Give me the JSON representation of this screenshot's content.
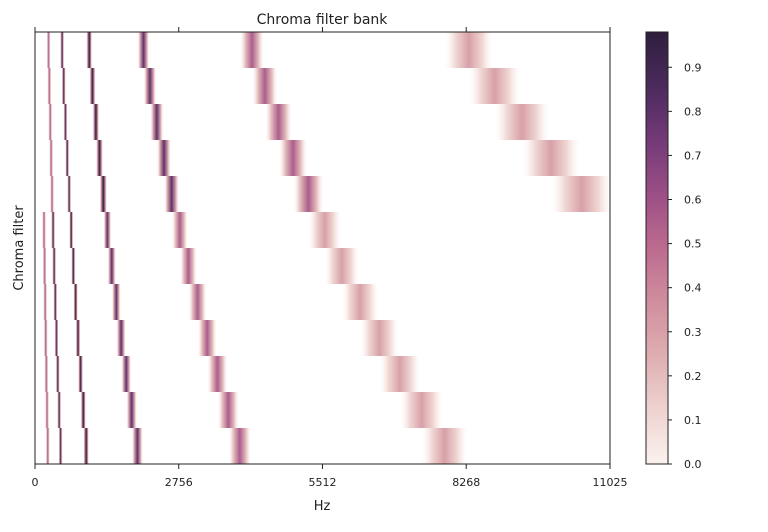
{
  "chart_data": {
    "type": "heatmap",
    "title": "Chroma filter bank",
    "xlabel": "Hz",
    "ylabel": "Chroma filter",
    "xlim": [
      0,
      11025
    ],
    "ylim": [
      0,
      12
    ],
    "x_ticks": [
      0,
      2756,
      5512,
      8268,
      11025
    ],
    "colorbar": {
      "min": 0.0,
      "max": 0.98,
      "ticks": [
        0.0,
        0.1,
        0.2,
        0.3,
        0.4,
        0.5,
        0.6,
        0.7,
        0.8,
        0.9
      ],
      "colors": [
        "#fbf2ef",
        "#eed3d0",
        "#dfaeb1",
        "#d08e9e",
        "#bc6b8f",
        "#9b4e85",
        "#733a77",
        "#4b2a5c",
        "#2e1e3d"
      ]
    },
    "rows": 12,
    "row_peaks_hz": [
      [
        260,
        520,
        1040,
        2080,
        4160,
        8320
      ],
      [
        275,
        551,
        1102,
        2204,
        4407,
        8815
      ],
      [
        292,
        584,
        1167,
        2335,
        4669,
        9339
      ],
      [
        309,
        618,
        1237,
        2473,
        4947,
        9894
      ],
      [
        327,
        655,
        1310,
        2620,
        5241,
        10482
      ],
      [
        173,
        347,
        694,
        1388,
        2777,
        5553
      ],
      [
        184,
        367,
        735,
        1471,
        2942,
        5883
      ],
      [
        195,
        389,
        779,
        1558,
        3117,
        6233
      ],
      [
        206,
        412,
        825,
        1651,
        3302,
        6604
      ],
      [
        218,
        437,
        874,
        1749,
        3498,
        6996
      ],
      [
        231,
        463,
        926,
        1853,
        3706,
        7412
      ],
      [
        245,
        490,
        981,
        1963,
        3926,
        7853
      ]
    ],
    "octave_weights": [
      0.55,
      0.9,
      0.98,
      0.8,
      0.55,
      0.3
    ]
  }
}
